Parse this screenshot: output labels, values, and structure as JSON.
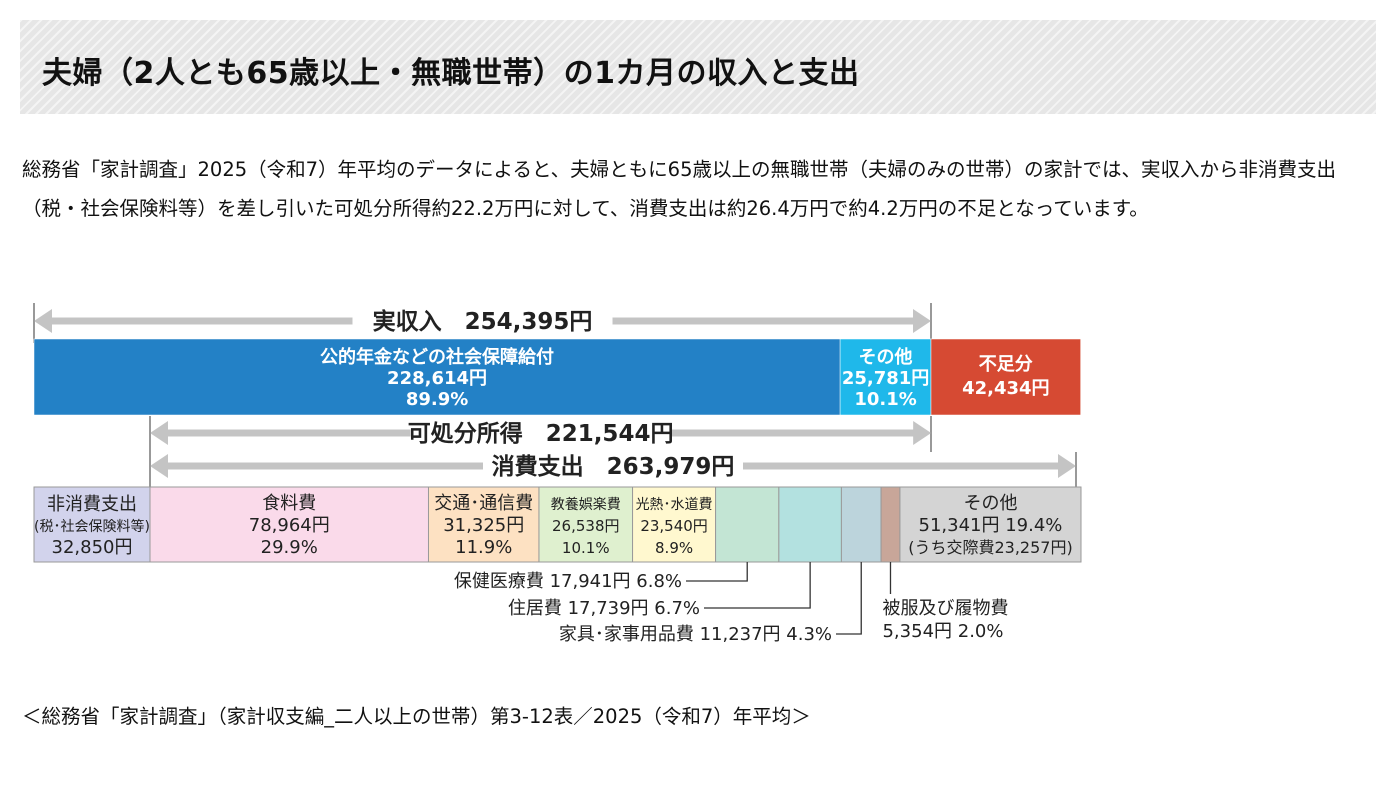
{
  "page": {
    "title": "夫婦（2人とも65歳以上・無職世帯）の1カ月の収入と支出",
    "lead": "総務省「家計調査」2025（令和7）年平均のデータによると、夫婦ともに65歳以上の無職世帯（夫婦のみの世帯）の家計では、実収入から非消費支出（税・社会保険料等）を差し引いた可処分所得約22.2万円に対して、消費支出は約26.4万円で約4.2万円の不足となっています。",
    "source": "＜総務省「家計調査」（家計収支編_二人以上の世帯）第3-12表／2025（令和7）年平均＞"
  },
  "colors": {
    "pension": "#2381c6",
    "other_income": "#1fb8ea",
    "shortfall": "#d64a33",
    "arrow": "#c4c4c4",
    "non_consumption": "#d2d3ec",
    "food": "#fadaea",
    "transport": "#fde1c2",
    "culture": "#dff0cf",
    "utilities": "#fff8cf",
    "medical": "#c3e5d4",
    "housing": "#b3e1e0",
    "furniture": "#bcd4dc",
    "clothing": "#c8a699",
    "other_expense": "#d4d4d4"
  },
  "chart_data": {
    "type": "bar",
    "orientation": "horizontal-stacked",
    "currency_unit": "円",
    "arrows": {
      "actual_income": {
        "label": "実収入",
        "value_text": "254,395円",
        "value": 254395
      },
      "disposable_income": {
        "label": "可処分所得",
        "value_text": "221,544円",
        "value": 221544
      },
      "consumption": {
        "label": "消費支出",
        "value_text": "263,979円",
        "value": 263979
      }
    },
    "income_bar": [
      {
        "key": "pension",
        "name": "公的年金などの社会保障給付",
        "value": 228614,
        "value_text": "228,614円",
        "share_text": "89.9%"
      },
      {
        "key": "other_income",
        "name": "その他",
        "value": 25781,
        "value_text": "25,781円",
        "share_text": "10.1%"
      },
      {
        "key": "shortfall",
        "name": "不足分",
        "value": 42434,
        "value_text": "42,434円",
        "share_text": ""
      }
    ],
    "expense_bar": [
      {
        "key": "non_consumption",
        "name": "非消費支出",
        "sub": "(税･社会保険料等)",
        "value": 32850,
        "value_text": "32,850円",
        "share_text": ""
      },
      {
        "key": "food",
        "name": "食料費",
        "value": 78964,
        "value_text": "78,964円",
        "share_text": "29.9%"
      },
      {
        "key": "transport",
        "name": "交通･通信費",
        "value": 31325,
        "value_text": "31,325円",
        "share_text": "11.9%"
      },
      {
        "key": "culture",
        "name": "教養娯楽費",
        "value": 26538,
        "value_text": "26,538円",
        "share_text": "10.1%"
      },
      {
        "key": "utilities",
        "name": "光熱･水道費",
        "value": 23540,
        "value_text": "23,540円",
        "share_text": "8.9%"
      },
      {
        "key": "medical",
        "name": "保健医療費",
        "value": 17941,
        "value_text": "17,941円",
        "share_text": "6.8%",
        "callout": true
      },
      {
        "key": "housing",
        "name": "住居費",
        "value": 17739,
        "value_text": "17,739円",
        "share_text": "6.7%",
        "callout": true
      },
      {
        "key": "furniture",
        "name": "家具･家事用品費",
        "value": 11237,
        "value_text": "11,237円",
        "share_text": "4.3%",
        "callout": true
      },
      {
        "key": "clothing",
        "name": "被服及び履物費",
        "value": 5354,
        "value_text": "5,354円",
        "share_text": "2.0%",
        "callout": true
      },
      {
        "key": "other_expense",
        "name": "その他",
        "value": 51341,
        "value_text": "51,341円",
        "share_text": "19.4%",
        "sub": "(うち交際費23,257円)"
      }
    ]
  }
}
